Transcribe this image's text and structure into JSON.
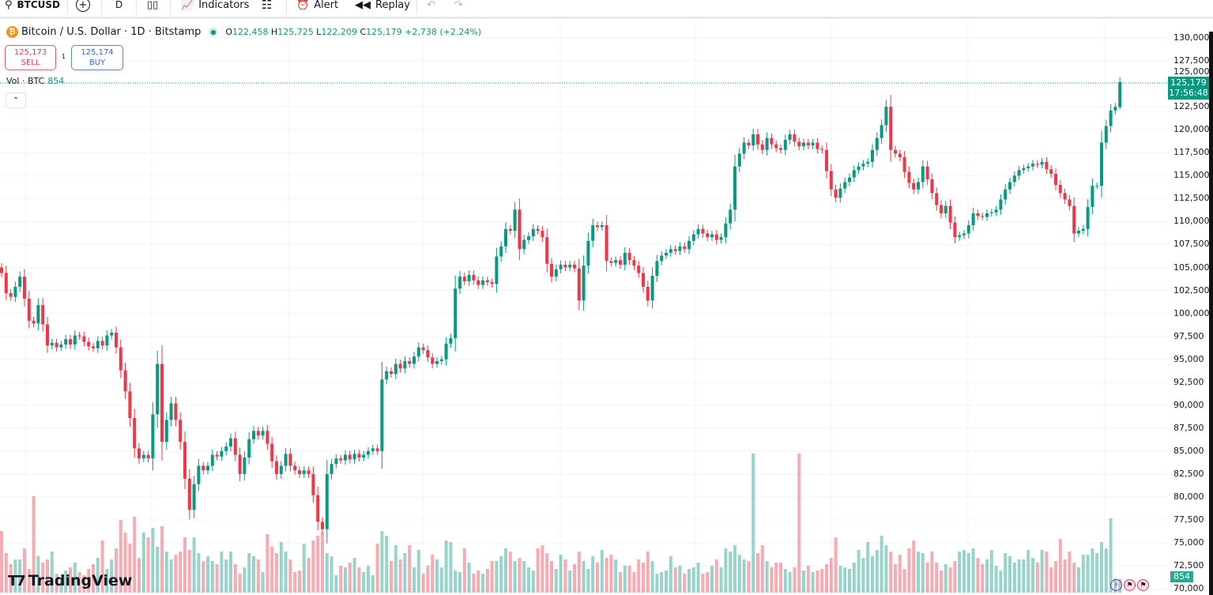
{
  "toolbar": {
    "symbol": "BTCUSD",
    "interval": "D",
    "indicators_label": "Indicators",
    "alert_label": "Alert",
    "replay_label": "Replay"
  },
  "legend": {
    "title": "Bitcoin / U.S. Dollar · 1D · Bitstamp",
    "o_label": "O",
    "o_value": "122,458",
    "h_label": "H",
    "h_value": "125,725",
    "l_label": "L",
    "l_value": "122,209",
    "c_label": "C",
    "c_value": "125,179",
    "change": "+2,738 (+2.24%)"
  },
  "trade": {
    "sell_price": "125,173",
    "sell_label": "SELL",
    "spread": "1",
    "buy_price": "125,174",
    "buy_label": "BUY"
  },
  "volume_legend": {
    "label": "Vol · BTC",
    "value": "854"
  },
  "price_tag": {
    "price": "125,179",
    "countdown": "17:56:48"
  },
  "volume_tag": "854",
  "logo_text": "TradingView",
  "colors": {
    "up": "#089981",
    "down": "#f23645",
    "accent": "#2962ff"
  },
  "chart_data": {
    "type": "candlestick",
    "interval": "1D",
    "y_ticks": [
      "130,000",
      "127,500",
      "125,000",
      "122,500",
      "120,000",
      "117,500",
      "115,000",
      "112,500",
      "110,000",
      "107,500",
      "105,000",
      "102,500",
      "100,000",
      "97,500",
      "95,000",
      "92,500",
      "90,000",
      "87,500",
      "85,000",
      "82,500",
      "80,000",
      "77,500",
      "75,000",
      "72,500",
      "70,000"
    ],
    "ylim": [
      70000,
      130000
    ],
    "grid": true,
    "last_candle": {
      "open": 122458,
      "high": 125725,
      "low": 122209,
      "close": 125179
    },
    "close_thousands": [
      104.4,
      102.2,
      101.8,
      102.9,
      104.0,
      101.6,
      99.2,
      98.9,
      100.9,
      98.8,
      96.5,
      96.8,
      96.3,
      96.6,
      97.2,
      96.6,
      97.6,
      97.5,
      96.9,
      96.4,
      96.2,
      97.0,
      96.5,
      97.6,
      97.9,
      96.3,
      93.8,
      91.5,
      88.6,
      85.3,
      84.2,
      84.6,
      84.2,
      89.0,
      94.5,
      86.0,
      88.4,
      90.2,
      88.4,
      86.0,
      82.0,
      78.6,
      81.4,
      83.4,
      82.9,
      83.4,
      84.6,
      84.4,
      85.0,
      85.5,
      86.4,
      84.6,
      82.5,
      84.3,
      86.3,
      87.2,
      86.7,
      87.2,
      85.8,
      83.9,
      82.5,
      83.4,
      84.7,
      83.4,
      82.9,
      82.5,
      82.9,
      82.5,
      80.2,
      77.3,
      76.5,
      82.5,
      83.6,
      84.2,
      84.0,
      84.6,
      84.1,
      84.7,
      84.3,
      84.6,
      85.0,
      85.3,
      85.0,
      92.8,
      93.7,
      93.4,
      94.5,
      94.0,
      94.8,
      94.5,
      95.3,
      96.3,
      96.0,
      95.2,
      94.5,
      94.8,
      95.0,
      96.7,
      97.3,
      102.7,
      104.0,
      103.5,
      104.2,
      103.6,
      103.1,
      103.6,
      103.4,
      103.2,
      106.2,
      107.3,
      109.2,
      109.0,
      111.3,
      107.0,
      108.0,
      108.4,
      109.2,
      109.0,
      108.3,
      105.4,
      104.0,
      104.8,
      105.3,
      105.0,
      105.3,
      104.9,
      101.4,
      105.2,
      107.9,
      109.6,
      109.4,
      109.6,
      105.7,
      105.5,
      105.8,
      105.3,
      106.6,
      105.8,
      105.2,
      104.4,
      102.9,
      101.4,
      104.1,
      105.7,
      106.3,
      106.6,
      107.0,
      106.8,
      107.3,
      107.0,
      107.9,
      108.6,
      109.2,
      108.7,
      108.3,
      108.6,
      108.0,
      108.3,
      109.8,
      111.3,
      116.0,
      117.4,
      118.6,
      118.3,
      119.5,
      118.4,
      117.8,
      119.1,
      118.4,
      118.0,
      117.8,
      118.9,
      119.5,
      118.7,
      118.2,
      118.6,
      118.3,
      118.6,
      117.9,
      117.8,
      115.5,
      113.5,
      112.6,
      113.6,
      114.3,
      114.8,
      115.6,
      116.0,
      116.3,
      116.5,
      117.8,
      119.1,
      120.5,
      122.5,
      117.8,
      117.4,
      117.0,
      115.4,
      114.2,
      113.5,
      114.3,
      116.0,
      114.6,
      113.1,
      111.8,
      110.9,
      111.7,
      109.9,
      108.3,
      108.5,
      108.7,
      109.6,
      110.9,
      110.6,
      110.5,
      110.9,
      111.0,
      111.3,
      112.4,
      113.5,
      114.3,
      115.0,
      115.6,
      115.8,
      116.0,
      116.3,
      116.2,
      116.5,
      115.7,
      115.2,
      114.0,
      113.1,
      112.4,
      111.7,
      108.7,
      109.0,
      109.2,
      111.6,
      113.9,
      113.9,
      118.6,
      120.4,
      122.1,
      122.5,
      125.179
    ],
    "volume_btc": [
      3900,
      2500,
      1800,
      2100,
      2100,
      2800,
      1500,
      6100,
      2300,
      1900,
      2100,
      2600,
      1200,
      800,
      1400,
      1600,
      1900,
      1300,
      1100,
      1500,
      1800,
      2200,
      3300,
      1500,
      2100,
      2800,
      4600,
      3800,
      3100,
      4800,
      2200,
      3800,
      3500,
      4100,
      2900,
      4200,
      2600,
      2100,
      2400,
      2600,
      3500,
      2700,
      3500,
      2500,
      2000,
      2300,
      2000,
      1800,
      2600,
      2100,
      2600,
      1800,
      1200,
      1600,
      2500,
      2300,
      2100,
      1300,
      3700,
      2900,
      2500,
      3200,
      2600,
      2100,
      1300,
      1400,
      3100,
      2200,
      3300,
      3600,
      3800,
      2500,
      2300,
      1100,
      1700,
      1600,
      1900,
      2200,
      1600,
      1300,
      1700,
      1100,
      3100,
      3900,
      3600,
      2000,
      3000,
      2100,
      2500,
      3000,
      1600,
      2700,
      1200,
      1700,
      2400,
      2100,
      1600,
      3300,
      3200,
      1400,
      1300,
      2800,
      1900,
      1200,
      1400,
      1200,
      1500,
      2000,
      2000,
      2300,
      2800,
      2600,
      2000,
      2200,
      2000,
      1600,
      1400,
      2800,
      3000,
      2500,
      2000,
      1500,
      2400,
      2100,
      1400,
      1800,
      2600,
      2000,
      1500,
      2300,
      1900,
      2700,
      2200,
      2400,
      2100,
      1300,
      1700,
      1700,
      1300,
      2100,
      1900,
      2600,
      2000,
      1200,
      1300,
      1400,
      2300,
      1600,
      1700,
      1200,
      1500,
      1600,
      1900,
      1200,
      1300,
      1700,
      2100,
      1600,
      2800,
      2600,
      3000,
      2400,
      2100,
      2000,
      8800,
      2500,
      3000,
      2000,
      1600,
      1900,
      1900,
      1500,
      1300,
      1600,
      8800,
      1400,
      1700,
      1300,
      1400,
      1500,
      1800,
      2200,
      3500,
      1700,
      1600,
      1500,
      1900,
      2700,
      2200,
      3200,
      2300,
      2700,
      3600,
      3000,
      2600,
      1800,
      2400,
      1500,
      2800,
      3300,
      2600,
      2500,
      1900,
      2600,
      1900,
      1400,
      1800,
      1600,
      2000,
      2600,
      2700,
      2500,
      2800,
      2200,
      1800,
      2100,
      2700,
      1700,
      1400,
      2500,
      2300,
      1900,
      2100,
      2100,
      2700,
      2200,
      1900,
      2700,
      2600,
      1600,
      2000,
      3400,
      2100,
      2600,
      1900,
      1600,
      2400,
      2400,
      2800,
      2500,
      3200,
      2800,
      4700,
      900,
      854
    ]
  }
}
